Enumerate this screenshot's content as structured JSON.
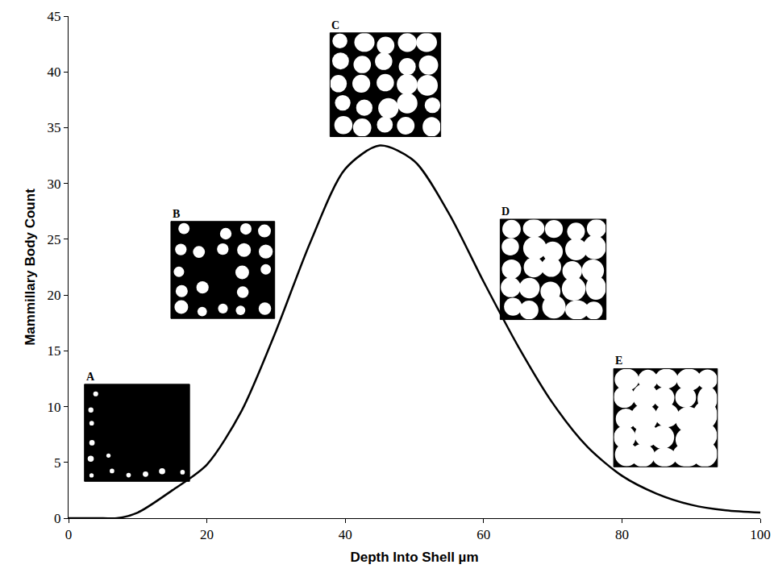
{
  "chart_data": {
    "type": "line",
    "x": [
      0,
      5,
      7,
      10,
      15,
      20,
      25,
      30,
      35,
      40,
      45,
      50,
      55,
      60,
      65,
      70,
      75,
      80,
      85,
      90,
      95,
      100
    ],
    "values": [
      0,
      0,
      0,
      0.5,
      2.5,
      4.8,
      9.6,
      16.8,
      24.8,
      31.3,
      33.4,
      32,
      27.3,
      21.2,
      15.4,
      10.3,
      6.4,
      3.8,
      2.2,
      1.2,
      0.7,
      0.5
    ],
    "color": "#000000",
    "line_style": "solid",
    "xlabel": "Depth Into Shell µm",
    "ylabel": "Mammillary Body Count",
    "xlim": [
      0,
      100
    ],
    "ylim": [
      0,
      45
    ],
    "xticks": [
      0,
      20,
      40,
      60,
      80,
      100
    ],
    "yticks": [
      0,
      5,
      10,
      15,
      20,
      25,
      30,
      35,
      40,
      45
    ],
    "grid": false,
    "annotations": [
      "A",
      "B",
      "C",
      "D",
      "E"
    ]
  }
}
